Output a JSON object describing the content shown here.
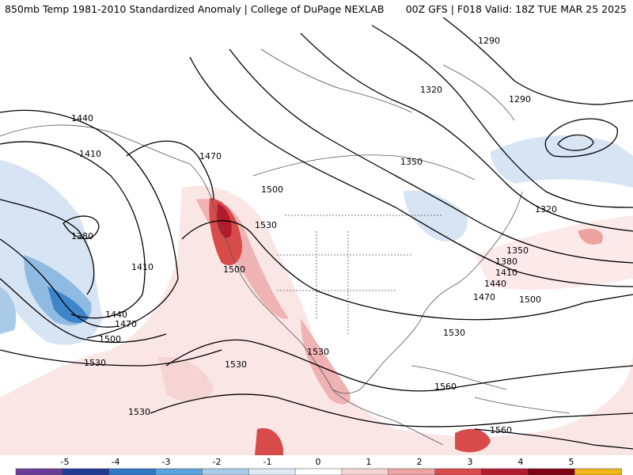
{
  "title": {
    "left": "850mb Temp 1981-2010 Standardized Anomaly | College of DuPage NEXLAB",
    "right": "00Z GFS | F018 Valid: 18Z TUE MAR 25 2025"
  },
  "contour_labels": [
    "1290",
    "1290",
    "1320",
    "1320",
    "1350",
    "1350",
    "1380",
    "1380",
    "1410",
    "1410",
    "1410",
    "1440",
    "1440",
    "1440",
    "1470",
    "1470",
    "1470",
    "1500",
    "1500",
    "1500",
    "1500",
    "1530",
    "1530",
    "1530",
    "1530",
    "1530",
    "1530",
    "1560",
    "1560"
  ],
  "colorbar": {
    "ticks": [
      "-5",
      "-4",
      "-3",
      "-2",
      "-1",
      "0",
      "1",
      "2",
      "3",
      "4",
      "5"
    ],
    "colors": [
      "#6a3d9a",
      "#1f3a93",
      "#2f78c4",
      "#5ba3dc",
      "#a9cbe8",
      "#dfeaf5",
      "#ffffff",
      "#f7d4d4",
      "#eea3a3",
      "#d84b4b",
      "#b21b2b",
      "#7e0012",
      "#f2b51a"
    ]
  }
}
